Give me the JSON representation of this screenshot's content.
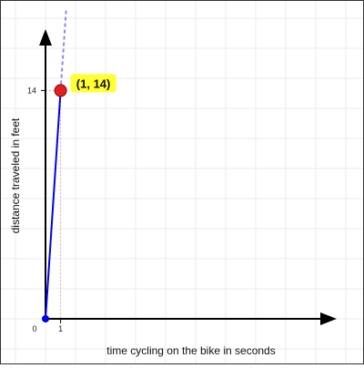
{
  "chart_data": {
    "type": "line",
    "title": "",
    "xlabel": "time cycling on the bike in seconds",
    "ylabel": "distance traveled in feet",
    "xlim": [
      0,
      19
    ],
    "ylim": [
      0,
      18.7
    ],
    "grid": true,
    "x_ticks": [
      {
        "value": 0,
        "label": "0"
      },
      {
        "value": 1,
        "label": "1"
      }
    ],
    "y_ticks": [
      {
        "value": 14,
        "label": "14"
      }
    ],
    "series": [
      {
        "type": "segment",
        "x": [
          0,
          1
        ],
        "y": [
          0,
          14
        ],
        "color": "#0000ee"
      },
      {
        "type": "dashed-extension",
        "x": [
          1,
          1.37
        ],
        "y": [
          14,
          19
        ],
        "color": "#8a8aee"
      }
    ],
    "start_point": {
      "x": 0,
      "y": 0,
      "color": "#0000ee"
    },
    "highlight_point": {
      "x": 1,
      "y": 14,
      "label": "(1, 14)",
      "color": "#e02020",
      "label_bg": "#ffff33"
    }
  },
  "colors": {
    "grid": "#ebebeb",
    "axis": "#000000",
    "guide": "#e0a0a0",
    "border": "#333333"
  }
}
